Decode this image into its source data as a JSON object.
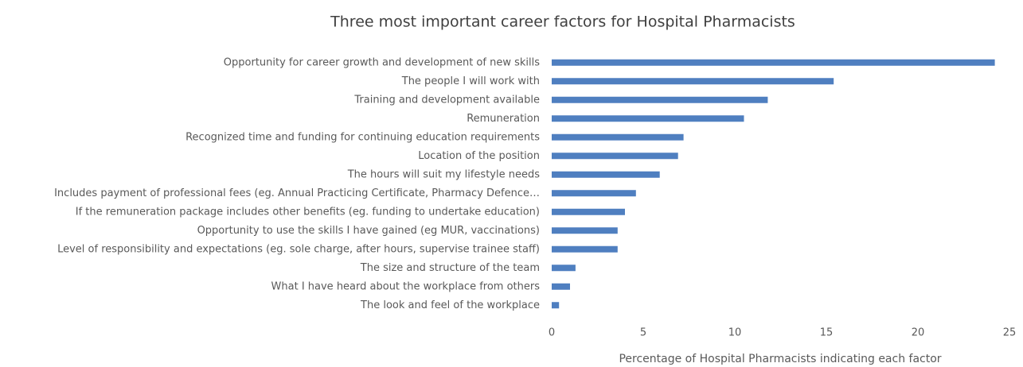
{
  "chart_data": {
    "type": "hbar",
    "title": "Three most important career factors for Hospital Pharmacists",
    "x_label": "Percentage of Hospital Pharmacists indicating each factor",
    "categories": [
      "Opportunity for career growth and development of new skills",
      "The people I will work with",
      "Training and development available",
      "Remuneration",
      "Recognized time and funding for continuing education requirements",
      "Location of the position",
      "The hours will suit my lifestyle needs",
      "Includes payment of professional fees (eg. Annual Practicing Certificate, Pharmacy Defence…",
      "If the remuneration package includes other benefits (eg. funding to undertake education)",
      "Opportunity to use the skills I have gained (eg MUR, vaccinations)",
      "Level of responsibility and expectations (eg. sole charge, after hours, supervise trainee staff)",
      "The size and structure of the team",
      "What I have heard about the workplace from others",
      "The look and feel of the workplace"
    ],
    "values": [
      24.2,
      15.4,
      11.8,
      10.5,
      7.2,
      6.9,
      5.9,
      4.6,
      4.0,
      3.6,
      3.6,
      1.3,
      1.0,
      0.4
    ],
    "color": "#4f7fc0",
    "xlim": [
      0,
      25
    ],
    "xticks": [
      0,
      5,
      10,
      15,
      20,
      25
    ],
    "grid": false
  }
}
